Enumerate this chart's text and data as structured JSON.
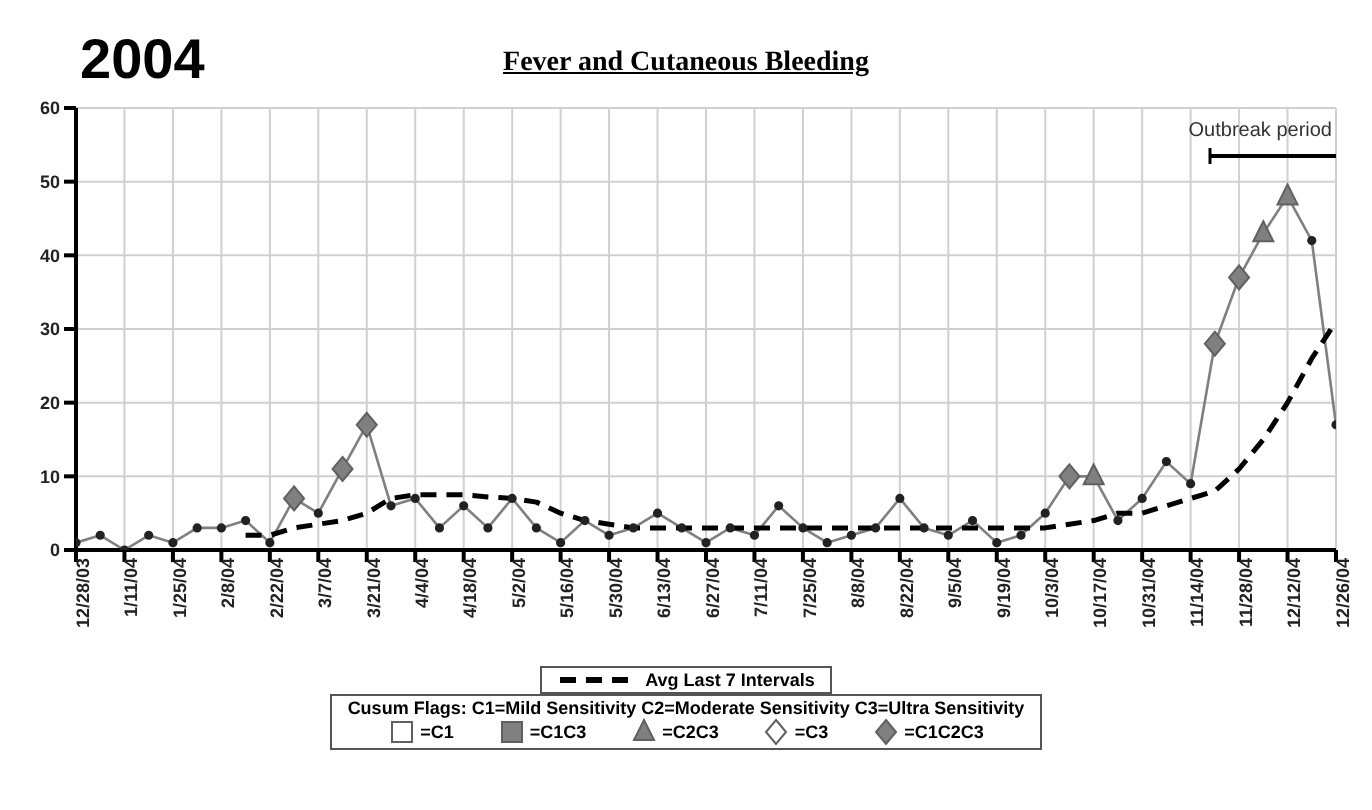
{
  "chart_data": {
    "type": "line",
    "title": "Fever and Cutaneous Bleeding",
    "subtitle": "2004",
    "categories": [
      "12/28/03",
      null,
      "1/11/04",
      null,
      "1/25/04",
      null,
      "2/8/04",
      null,
      "2/22/04",
      null,
      "3/7/04",
      null,
      "3/21/04",
      null,
      "4/4/04",
      null,
      "4/18/04",
      null,
      "5/2/04",
      null,
      "5/16/04",
      null,
      "5/30/04",
      null,
      "6/13/04",
      null,
      "6/27/04",
      null,
      "7/11/04",
      null,
      "7/25/04",
      null,
      "8/8/04",
      null,
      "8/22/04",
      null,
      "9/5/04",
      null,
      "9/19/04",
      null,
      "10/3/04",
      null,
      "10/17/04",
      null,
      "10/31/04",
      null,
      "11/14/04",
      null,
      "11/28/04",
      null,
      "12/12/04",
      null,
      "12/26/04"
    ],
    "series": [
      {
        "color": "#808080",
        "marker": "circle",
        "line_style": "solid",
        "values": [
          1,
          2,
          0,
          2,
          1,
          3,
          3,
          4,
          1,
          7,
          5,
          11,
          17,
          6,
          7,
          3,
          6,
          3,
          7,
          3,
          1,
          4,
          2,
          3,
          5,
          3,
          1,
          3,
          2,
          6,
          3,
          1,
          2,
          3,
          7,
          3,
          2,
          4,
          1,
          2,
          5,
          10,
          10,
          4,
          7,
          12,
          9,
          28,
          37,
          43,
          48,
          42,
          17
        ]
      },
      {
        "name": "Avg Last 7 Intervals",
        "color": "#000000",
        "marker": "none",
        "line_style": "dashed",
        "values": [
          null,
          null,
          null,
          null,
          null,
          null,
          null,
          2,
          2,
          3,
          3.5,
          4,
          5,
          7,
          7.5,
          7.5,
          7.5,
          7.2,
          7,
          6.5,
          5,
          4,
          3.5,
          3,
          3,
          3,
          3,
          3,
          3,
          3,
          3,
          3,
          3,
          3,
          3,
          3,
          3,
          3,
          3,
          3,
          3,
          3.5,
          4,
          5,
          5,
          6,
          7,
          8,
          11,
          15,
          20,
          26,
          31
        ]
      },
      {
        "name": "=C1",
        "type": "scatter",
        "color": "#ffffff",
        "marker": "square",
        "values": [
          null,
          null,
          null,
          null,
          null,
          null,
          null,
          null,
          null,
          null,
          null,
          null,
          null,
          null,
          null,
          null,
          null,
          null,
          null,
          null,
          null,
          null,
          null,
          null,
          null,
          null,
          null,
          null,
          null,
          null,
          null,
          null,
          null,
          null,
          null,
          null,
          null,
          null,
          null,
          null,
          null,
          null,
          null,
          null,
          null,
          null,
          null,
          null,
          null,
          null,
          null,
          null,
          null
        ]
      },
      {
        "name": "=C1C3",
        "type": "scatter",
        "color": "#808080",
        "marker": "square",
        "values": [
          null,
          null,
          null,
          null,
          null,
          null,
          null,
          null,
          null,
          null,
          null,
          null,
          null,
          null,
          null,
          null,
          null,
          null,
          null,
          null,
          null,
          null,
          null,
          null,
          null,
          null,
          null,
          null,
          null,
          null,
          null,
          null,
          null,
          null,
          null,
          null,
          null,
          null,
          null,
          null,
          null,
          null,
          null,
          null,
          null,
          null,
          null,
          null,
          null,
          null,
          null,
          null,
          null
        ]
      },
      {
        "name": "=C2C3",
        "type": "scatter",
        "color": "#808080",
        "marker": "triangle",
        "values": [
          null,
          null,
          null,
          null,
          null,
          null,
          null,
          null,
          null,
          null,
          null,
          null,
          null,
          null,
          null,
          null,
          null,
          null,
          null,
          null,
          null,
          null,
          null,
          null,
          null,
          null,
          null,
          null,
          null,
          null,
          null,
          null,
          null,
          null,
          null,
          null,
          null,
          null,
          null,
          null,
          null,
          null,
          10,
          null,
          null,
          null,
          null,
          null,
          null,
          43,
          48,
          null,
          null
        ]
      },
      {
        "name": "=C3",
        "type": "scatter",
        "color": "#ffffff",
        "marker": "diamond",
        "values": [
          null,
          null,
          null,
          null,
          null,
          null,
          null,
          null,
          null,
          null,
          null,
          null,
          null,
          null,
          null,
          null,
          null,
          null,
          null,
          null,
          null,
          null,
          null,
          null,
          null,
          null,
          null,
          null,
          null,
          null,
          null,
          null,
          null,
          null,
          null,
          null,
          null,
          null,
          null,
          null,
          null,
          null,
          null,
          null,
          null,
          null,
          null,
          null,
          null,
          null,
          null,
          null,
          null
        ]
      },
      {
        "name": "=C1C2C3",
        "type": "scatter",
        "color": "#808080",
        "marker": "diamond",
        "values": [
          null,
          null,
          null,
          null,
          null,
          null,
          null,
          null,
          null,
          7,
          null,
          11,
          17,
          null,
          null,
          null,
          null,
          null,
          null,
          null,
          null,
          null,
          null,
          null,
          null,
          null,
          null,
          null,
          null,
          null,
          null,
          null,
          null,
          null,
          null,
          null,
          null,
          null,
          null,
          null,
          null,
          10,
          null,
          null,
          null,
          null,
          null,
          28,
          37,
          null,
          null,
          null,
          null
        ]
      }
    ],
    "ylim": [
      0,
      60
    ],
    "yticks": [
      0,
      10,
      20,
      30,
      40,
      50,
      60
    ],
    "grid": true,
    "legend": "bottom",
    "annotations": [
      "Outbreak period",
      "Cusum Flags: C1=Mild Sensitivity C2=Moderate Sensitivity C3=Ultra Sensitivity"
    ]
  }
}
